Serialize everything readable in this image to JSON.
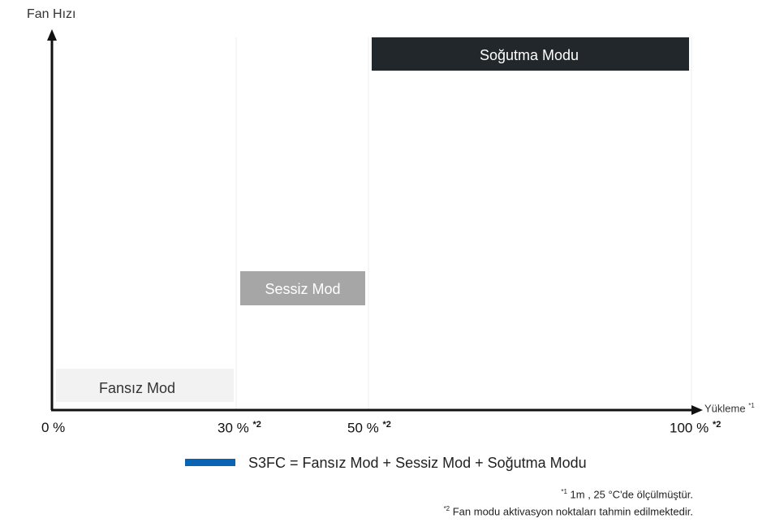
{
  "axes": {
    "y_label": "Fan Hızı",
    "x_label": "Yükleme",
    "x_label_note": "*1"
  },
  "ticks": [
    {
      "label": "0 %",
      "note": ""
    },
    {
      "label": "30 %",
      "note": "*2"
    },
    {
      "label": "50 %",
      "note": "*2"
    },
    {
      "label": "100 %",
      "note": "*2"
    }
  ],
  "modes": {
    "fansiz": {
      "label": "Fansız Mod",
      "color": "#f2f2f2",
      "text_color": "#333333"
    },
    "sessiz": {
      "label": "Sessiz Mod",
      "color": "#a6a6a6",
      "text_color": "#ffffff"
    },
    "sogutma": {
      "label": "Soğutma Modu",
      "color": "#21272b",
      "text_color": "#ffffff"
    }
  },
  "legend": {
    "text": "S3FC = Fansız Mod + Sessiz Mod + Soğutma Modu",
    "color": "#0b63b3"
  },
  "notes": [
    {
      "marker": "*1",
      "text": " 1m , 25 °C'de ölçülmüştür."
    },
    {
      "marker": "*2",
      "text": " Fan modu aktivasyon noktaları tahmin edilmektedir."
    }
  ]
}
